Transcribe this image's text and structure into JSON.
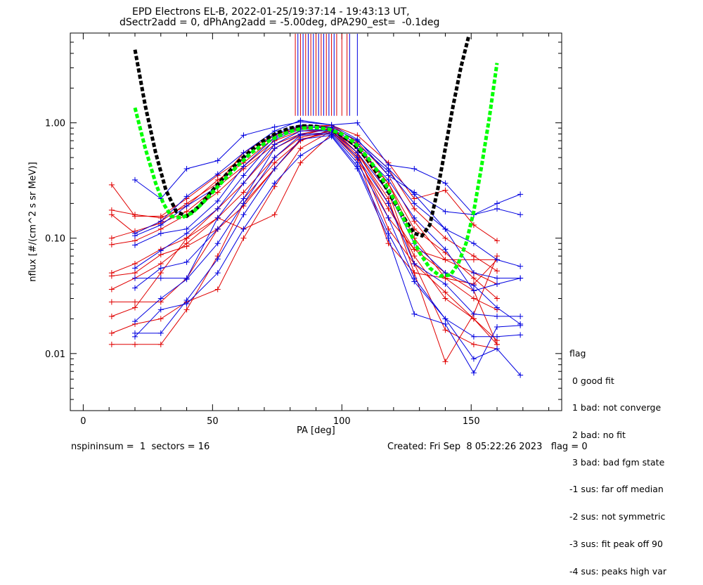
{
  "title_line1": "EPD Electrons EL-B, 2022-01-25/19:37:14 - 19:43:13 UT,",
  "title_line2": "dSectr2add = 0, dPhAng2add = -5.00deg, dPA290_est=  -0.1deg",
  "footer_left": "nspininsum =  1  sectors = 16",
  "footer_right": "Created: Fri Sep  8 05:22:26 2023   flag = 0",
  "legend": {
    "title": "flag",
    "items": [
      " 0 good fit",
      " 1 bad: not converge",
      " 2 bad: no fit",
      " 3 bad: bad fgm state",
      "-1 sus: far off median",
      "-2 sus: not symmetric",
      "-3 sus: fit peak off 90",
      "-4 sus: peaks high var"
    ]
  },
  "colors": {
    "red": "#e00000",
    "blue": "#0000e0",
    "black": "#000000",
    "green": "#00ff00"
  },
  "chart_data": {
    "type": "line",
    "title": "EPD Electrons EL-B, 2022-01-25/19:37:14 - 19:43:13 UT,",
    "subtitle": "dSectr2add = 0, dPhAng2add = -5.00deg, dPA290_est=  -0.1deg",
    "xlabel": "PA [deg]",
    "ylabel": "nflux [#/(cm^2 s sr MeV)]",
    "xlim": [
      -5,
      185
    ],
    "ylim": [
      0.0032,
      6.0
    ],
    "yscale": "log",
    "xticks": [
      0,
      50,
      100,
      150
    ],
    "xtick_labels": [
      "0",
      "50",
      "100",
      "150"
    ],
    "yticks": [
      0.01,
      0.1,
      1.0
    ],
    "ytick_labels": [
      "0.01",
      "0.10",
      "1.00"
    ],
    "vertical_lines": {
      "red": [
        82,
        84,
        86,
        88,
        90,
        92,
        94,
        96,
        98,
        100,
        102
      ],
      "blue": [
        83,
        85,
        87,
        89,
        91,
        93,
        95,
        97,
        103,
        106
      ]
    },
    "series": [
      {
        "color": "red",
        "x": [
          11,
          20,
          30,
          40,
          52,
          62,
          74,
          84,
          96,
          106,
          118,
          128,
          140,
          151,
          160
        ],
        "y": [
          0.29,
          0.155,
          0.155,
          0.22,
          0.35,
          0.5,
          0.78,
          0.93,
          0.95,
          0.78,
          0.45,
          0.22,
          0.26,
          0.13,
          0.095
        ]
      },
      {
        "color": "red",
        "x": [
          11,
          20,
          30,
          40,
          52,
          62,
          74,
          84,
          96,
          106,
          118,
          128,
          140,
          151,
          160
        ],
        "y": [
          0.175,
          0.16,
          0.15,
          0.19,
          0.32,
          0.45,
          0.75,
          0.9,
          0.92,
          0.7,
          0.4,
          0.18,
          0.1,
          0.07,
          0.052
        ]
      },
      {
        "color": "red",
        "x": [
          11,
          20,
          30,
          40,
          52,
          62,
          74,
          84,
          96,
          106,
          118,
          128,
          140,
          151,
          160
        ],
        "y": [
          0.16,
          0.11,
          0.14,
          0.2,
          0.3,
          0.55,
          0.8,
          0.88,
          0.95,
          0.68,
          0.35,
          0.14,
          0.065,
          0.05,
          0.04
        ]
      },
      {
        "color": "red",
        "x": [
          11,
          20,
          30,
          40,
          52,
          62,
          74,
          84,
          96,
          106,
          118,
          128,
          140,
          151,
          160
        ],
        "y": [
          0.1,
          0.115,
          0.135,
          0.17,
          0.28,
          0.42,
          0.7,
          0.85,
          0.88,
          0.6,
          0.3,
          0.1,
          0.045,
          0.03,
          0.024
        ]
      },
      {
        "color": "red",
        "x": [
          11,
          20,
          30,
          40,
          52,
          62,
          74,
          84,
          96,
          106,
          118,
          128,
          140,
          151,
          160
        ],
        "y": [
          0.088,
          0.095,
          0.12,
          0.16,
          0.25,
          0.4,
          0.65,
          0.8,
          0.9,
          0.55,
          0.2,
          0.07,
          0.03,
          0.02,
          0.012
        ]
      },
      {
        "color": "red",
        "x": [
          11,
          20,
          30,
          40,
          52,
          62,
          74,
          84,
          96,
          106,
          118,
          128,
          140,
          151,
          160
        ],
        "y": [
          0.05,
          0.06,
          0.08,
          0.1,
          0.18,
          0.3,
          0.6,
          0.78,
          0.9,
          0.6,
          0.25,
          0.06,
          0.016,
          0.012,
          0.011
        ]
      },
      {
        "color": "red",
        "x": [
          11,
          20,
          30,
          40,
          52,
          62,
          74,
          84,
          96,
          106,
          118,
          128,
          140,
          151,
          160
        ],
        "y": [
          0.047,
          0.05,
          0.072,
          0.085,
          0.12,
          0.19,
          0.4,
          0.7,
          0.88,
          0.55,
          0.22,
          0.05,
          0.0085,
          0.022,
          0.07
        ]
      },
      {
        "color": "red",
        "x": [
          11,
          20,
          30,
          40,
          52,
          62,
          74,
          84,
          96,
          106,
          118,
          128,
          140,
          151,
          160
        ],
        "y": [
          0.036,
          0.045,
          0.06,
          0.09,
          0.15,
          0.25,
          0.5,
          0.75,
          0.85,
          0.5,
          0.09,
          0.05,
          0.045,
          0.04,
          0.065
        ]
      },
      {
        "color": "red",
        "x": [
          11,
          20,
          30,
          40,
          52,
          62,
          74,
          84,
          96,
          106,
          118,
          128,
          140,
          151,
          160
        ],
        "y": [
          0.028,
          0.028,
          0.028,
          0.045,
          0.12,
          0.22,
          0.45,
          0.7,
          0.86,
          0.52,
          0.15,
          0.08,
          0.065,
          0.065,
          0.065
        ]
      },
      {
        "color": "red",
        "x": [
          11,
          20,
          30,
          40,
          52,
          62,
          74,
          84,
          96,
          106,
          118,
          128,
          140,
          151,
          160
        ],
        "y": [
          0.021,
          0.025,
          0.05,
          0.1,
          0.15,
          0.12,
          0.16,
          0.45,
          0.8,
          0.65,
          0.3,
          0.12,
          0.075,
          0.045,
          0.03
        ]
      },
      {
        "color": "red",
        "x": [
          11,
          20,
          30,
          40,
          52,
          62,
          74,
          84,
          96,
          106,
          118,
          128,
          140,
          151,
          160
        ],
        "y": [
          0.015,
          0.018,
          0.02,
          0.028,
          0.036,
          0.1,
          0.28,
          0.6,
          0.85,
          0.55,
          0.12,
          0.06,
          0.034,
          0.02,
          0.013
        ]
      },
      {
        "color": "red",
        "x": [
          11,
          20,
          30,
          40,
          52,
          62,
          74,
          84,
          96,
          106,
          118,
          128,
          140,
          151,
          160
        ],
        "y": [
          0.012,
          0.012,
          0.012,
          0.024,
          0.07,
          0.2,
          0.4,
          0.72,
          0.82,
          0.48,
          0.18,
          0.08,
          0.05,
          0.035,
          0.012
        ]
      },
      {
        "color": "blue",
        "x": [
          20,
          30,
          40,
          52,
          62,
          74,
          84,
          96,
          106,
          118,
          128,
          140,
          151,
          160,
          169
        ],
        "y": [
          0.32,
          0.22,
          0.4,
          0.47,
          0.78,
          0.92,
          1.02,
          0.96,
          1.0,
          0.43,
          0.4,
          0.3,
          0.16,
          0.2,
          0.24
        ]
      },
      {
        "color": "blue",
        "x": [
          20,
          30,
          40,
          52,
          62,
          74,
          84,
          96,
          106,
          118,
          128,
          140,
          151,
          160,
          169
        ],
        "y": [
          0.11,
          0.14,
          0.23,
          0.36,
          0.55,
          0.85,
          1.05,
          0.96,
          0.72,
          0.35,
          0.25,
          0.17,
          0.16,
          0.18,
          0.16
        ]
      },
      {
        "color": "blue",
        "x": [
          20,
          30,
          40,
          52,
          62,
          74,
          84,
          96,
          106,
          118,
          128,
          140,
          151,
          160,
          169
        ],
        "y": [
          0.105,
          0.13,
          0.19,
          0.28,
          0.5,
          0.8,
          0.95,
          0.92,
          0.7,
          0.4,
          0.24,
          0.12,
          0.09,
          0.065,
          0.057
        ]
      },
      {
        "color": "blue",
        "x": [
          20,
          30,
          40,
          52,
          62,
          74,
          84,
          96,
          106,
          118,
          128,
          140,
          151,
          160,
          169
        ],
        "y": [
          0.087,
          0.11,
          0.12,
          0.21,
          0.42,
          0.75,
          0.92,
          0.9,
          0.65,
          0.38,
          0.2,
          0.12,
          0.05,
          0.045,
          0.045
        ]
      },
      {
        "color": "blue",
        "x": [
          20,
          30,
          40,
          52,
          62,
          74,
          84,
          96,
          106,
          118,
          128,
          140,
          151,
          160,
          169
        ],
        "y": [
          0.055,
          0.078,
          0.11,
          0.18,
          0.35,
          0.72,
          0.88,
          0.86,
          0.6,
          0.32,
          0.15,
          0.08,
          0.035,
          0.04,
          0.045
        ]
      },
      {
        "color": "blue",
        "x": [
          20,
          30,
          40,
          52,
          62,
          74,
          84,
          96,
          106,
          118,
          128,
          140,
          151,
          160,
          169
        ],
        "y": [
          0.045,
          0.045,
          0.045,
          0.15,
          0.3,
          0.65,
          0.85,
          0.85,
          0.55,
          0.25,
          0.09,
          0.05,
          0.039,
          0.025,
          0.018
        ]
      },
      {
        "color": "blue",
        "x": [
          20,
          30,
          40,
          52,
          62,
          74,
          84,
          96,
          106,
          118,
          128,
          140,
          151,
          160,
          169
        ],
        "y": [
          0.037,
          0.055,
          0.062,
          0.12,
          0.22,
          0.6,
          0.8,
          0.82,
          0.5,
          0.2,
          0.06,
          0.04,
          0.022,
          0.021,
          0.021
        ]
      },
      {
        "color": "blue",
        "x": [
          20,
          30,
          40,
          52,
          62,
          74,
          84,
          96,
          106,
          118,
          128,
          140,
          151,
          160,
          169
        ],
        "y": [
          0.019,
          0.03,
          0.044,
          0.09,
          0.2,
          0.5,
          0.78,
          0.8,
          0.45,
          0.15,
          0.045,
          0.02,
          0.014,
          0.014,
          0.0145
        ]
      },
      {
        "color": "blue",
        "x": [
          20,
          30,
          40,
          52,
          62,
          74,
          84,
          96,
          106,
          118,
          128,
          140,
          151,
          160,
          169
        ],
        "y": [
          0.015,
          0.015,
          0.029,
          0.066,
          0.16,
          0.4,
          0.72,
          0.78,
          0.42,
          0.11,
          0.042,
          0.02,
          0.009,
          0.011,
          0.0065
        ]
      },
      {
        "color": "blue",
        "x": [
          20,
          30,
          40,
          52,
          62,
          74,
          84,
          96,
          106,
          118,
          128,
          140,
          151,
          160,
          169
        ],
        "y": [
          0.014,
          0.024,
          0.027,
          0.05,
          0.12,
          0.3,
          0.52,
          0.76,
          0.4,
          0.1,
          0.022,
          0.018,
          0.0068,
          0.017,
          0.0175
        ]
      }
    ],
    "fit_curves": [
      {
        "color": "black",
        "style": "dashed",
        "x": [
          20,
          24,
          28,
          32,
          36,
          40,
          45,
          50,
          55,
          60,
          65,
          70,
          75,
          80,
          85,
          90,
          95,
          100,
          105,
          110,
          115,
          120,
          124,
          128,
          131,
          134,
          137,
          140,
          143,
          146,
          149
        ],
        "y": [
          4.3,
          1.4,
          0.55,
          0.26,
          0.17,
          0.155,
          0.19,
          0.26,
          0.35,
          0.46,
          0.58,
          0.71,
          0.82,
          0.9,
          0.94,
          0.93,
          0.88,
          0.78,
          0.64,
          0.48,
          0.33,
          0.21,
          0.15,
          0.11,
          0.105,
          0.13,
          0.26,
          0.6,
          1.4,
          3.0,
          5.6
        ]
      },
      {
        "color": "green",
        "style": "dashed",
        "x": [
          20,
          24,
          28,
          31,
          34,
          38,
          42,
          46,
          50,
          55,
          60,
          65,
          70,
          75,
          80,
          85,
          90,
          95,
          100,
          105,
          110,
          115,
          120,
          125,
          130,
          134,
          138,
          142,
          145,
          148,
          151,
          154,
          157,
          160
        ],
        "y": [
          1.35,
          0.6,
          0.3,
          0.2,
          0.155,
          0.15,
          0.165,
          0.2,
          0.25,
          0.33,
          0.43,
          0.55,
          0.66,
          0.76,
          0.84,
          0.9,
          0.91,
          0.88,
          0.8,
          0.67,
          0.5,
          0.35,
          0.22,
          0.13,
          0.075,
          0.055,
          0.047,
          0.048,
          0.06,
          0.09,
          0.17,
          0.42,
          1.1,
          3.3
        ]
      }
    ]
  }
}
